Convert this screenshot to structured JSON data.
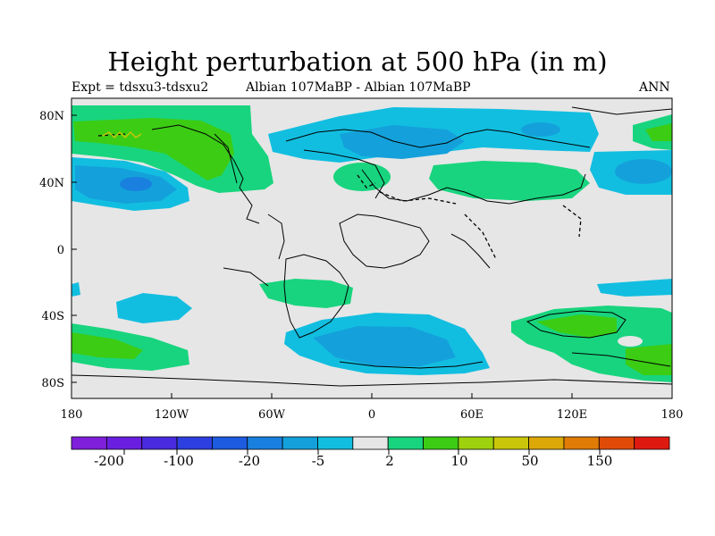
{
  "title": "Height perturbation at 500 hPa (in m)",
  "subtitle_left": "Expt = tdsxu3-tdsxu2",
  "subtitle_center": "Albian   107MaBP - Albian   107MaBP",
  "subtitle_right": "ANN",
  "x_ticks": [
    "180",
    "120W",
    "60W",
    "0",
    "60E",
    "120E",
    "180"
  ],
  "y_ticks": [
    "80N",
    "40N",
    "0",
    "40S",
    "80S"
  ],
  "colorbar": {
    "colors": [
      "#7f1fdc",
      "#6a1fe0",
      "#4a2adf",
      "#2d3fe0",
      "#1d5be0",
      "#1980df",
      "#14a1db",
      "#12bee0",
      "#e6e6e6",
      "#18d47e",
      "#3ccc14",
      "#9ed20e",
      "#c9c60a",
      "#dca808",
      "#e07b06",
      "#e04c08",
      "#de1a10"
    ],
    "labels": [
      "-200",
      "-100",
      "-20",
      "-5",
      "2",
      "10",
      "50",
      "150"
    ]
  },
  "chart_data": {
    "type": "heatmap",
    "title": "Height perturbation at 500 hPa (in m)",
    "variable": "500 hPa height perturbation",
    "units": "m",
    "xlim": [
      -180,
      180
    ],
    "ylim": [
      -90,
      90
    ],
    "levels": [
      -200,
      -100,
      -50,
      -20,
      -10,
      -5,
      -2,
      2,
      5,
      10,
      20,
      50,
      100,
      150
    ],
    "regions": [
      {
        "sign": "positive",
        "center_lon": -150,
        "center_lat": 70
      },
      {
        "sign": "positive",
        "center_lon": -120,
        "center_lat": 60
      },
      {
        "sign": "negative",
        "center_lon": -150,
        "center_lat": 40
      },
      {
        "sign": "negative",
        "center_lon": 30,
        "center_lat": 70
      },
      {
        "sign": "positive",
        "center_lon": -10,
        "center_lat": 42
      },
      {
        "sign": "positive",
        "center_lon": 75,
        "center_lat": 42
      },
      {
        "sign": "negative",
        "center_lon": 160,
        "center_lat": 50
      },
      {
        "sign": "positive",
        "center_lon": 170,
        "center_lat": 70
      },
      {
        "sign": "negative",
        "center_lon": -138,
        "center_lat": -35
      },
      {
        "sign": "positive",
        "center_lon": -50,
        "center_lat": -25
      },
      {
        "sign": "positive",
        "center_lon": -160,
        "center_lat": -60
      },
      {
        "sign": "negative",
        "center_lon": 15,
        "center_lat": -55
      },
      {
        "sign": "positive",
        "center_lon": 130,
        "center_lat": -60
      },
      {
        "sign": "negative",
        "center_lon": 165,
        "center_lat": -20
      }
    ]
  }
}
